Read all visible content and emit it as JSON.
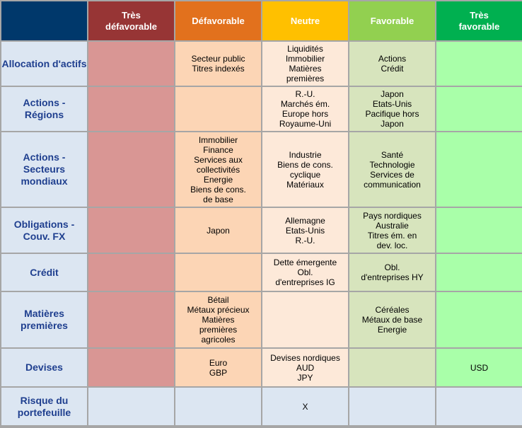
{
  "colors": {
    "header_corner": "#00386b",
    "header_tres_defavorable": "#973535",
    "header_defavorable": "#e2711d",
    "header_neutre": "#ffc000",
    "header_favorable": "#92d050",
    "header_tres_favorable": "#00b050",
    "row_label_bg": "#dce6f2",
    "row_label_text": "#1f3f8f",
    "cell_tres_defavorable": "#d99694",
    "cell_defavorable": "#fcd5b5",
    "cell_neutre": "#fde9d9",
    "cell_favorable": "#d7e4bd",
    "cell_tres_favorable": "#a9ffa9",
    "risk_row_bg": "#dce6f2",
    "grid_lines": "#a6a6a6"
  },
  "headers": [
    "",
    "Très défavorable",
    "Défavorable",
    "Neutre",
    "Favorable",
    "Très favorable"
  ],
  "rows": [
    {
      "label": "Allocation d'actifs",
      "tres_defavorable": "",
      "defavorable": "Secteur public\nTitres indexés",
      "neutre": "Liquidités\nImmobilier\nMatières\npremières",
      "favorable": "Actions\nCrédit",
      "tres_favorable": ""
    },
    {
      "label": "Actions -\nRégions",
      "tres_defavorable": "",
      "defavorable": "",
      "neutre": "R.-U.\nMarchés ém.\nEurope hors\nRoyaume-Uni",
      "favorable": "Japon\nEtats-Unis\nPacifique hors\nJapon",
      "tres_favorable": ""
    },
    {
      "label": "Actions -\nSecteurs\nmondiaux",
      "tres_defavorable": "",
      "defavorable": "Immobilier\nFinance\nServices aux\ncollectivités\nEnergie\nBiens de cons.\nde base",
      "neutre": "Industrie\nBiens de cons.\ncyclique\nMatériaux",
      "favorable": "Santé\nTechnologie\nServices de\ncommunication",
      "tres_favorable": ""
    },
    {
      "label": "Obligations -\nCouv. FX",
      "tres_defavorable": "",
      "defavorable": "Japon",
      "neutre": "Allemagne\nEtats-Unis\nR.-U.",
      "favorable": "Pays nordiques\nAustralie\nTitres ém. en\ndev. loc.",
      "tres_favorable": ""
    },
    {
      "label": "Crédit",
      "tres_defavorable": "",
      "defavorable": "",
      "neutre": "Dette émergente\nObl.\nd'entreprises IG",
      "favorable": "Obl.\nd'entreprises HY",
      "tres_favorable": ""
    },
    {
      "label": "Matières\npremières",
      "tres_defavorable": "",
      "defavorable": "Bétail\nMétaux précieux\nMatières\npremières\nagricoles",
      "neutre": "",
      "favorable": "Céréales\nMétaux de base\nEnergie",
      "tres_favorable": ""
    },
    {
      "label": "Devises",
      "tres_defavorable": "",
      "defavorable": "Euro\nGBP",
      "neutre": "Devises nordiques\nAUD\nJPY",
      "favorable": "",
      "tres_favorable": "USD"
    },
    {
      "label": "Risque du\nportefeuille",
      "tres_defavorable": "",
      "defavorable": "",
      "neutre": "X",
      "favorable": "",
      "tres_favorable": ""
    }
  ]
}
